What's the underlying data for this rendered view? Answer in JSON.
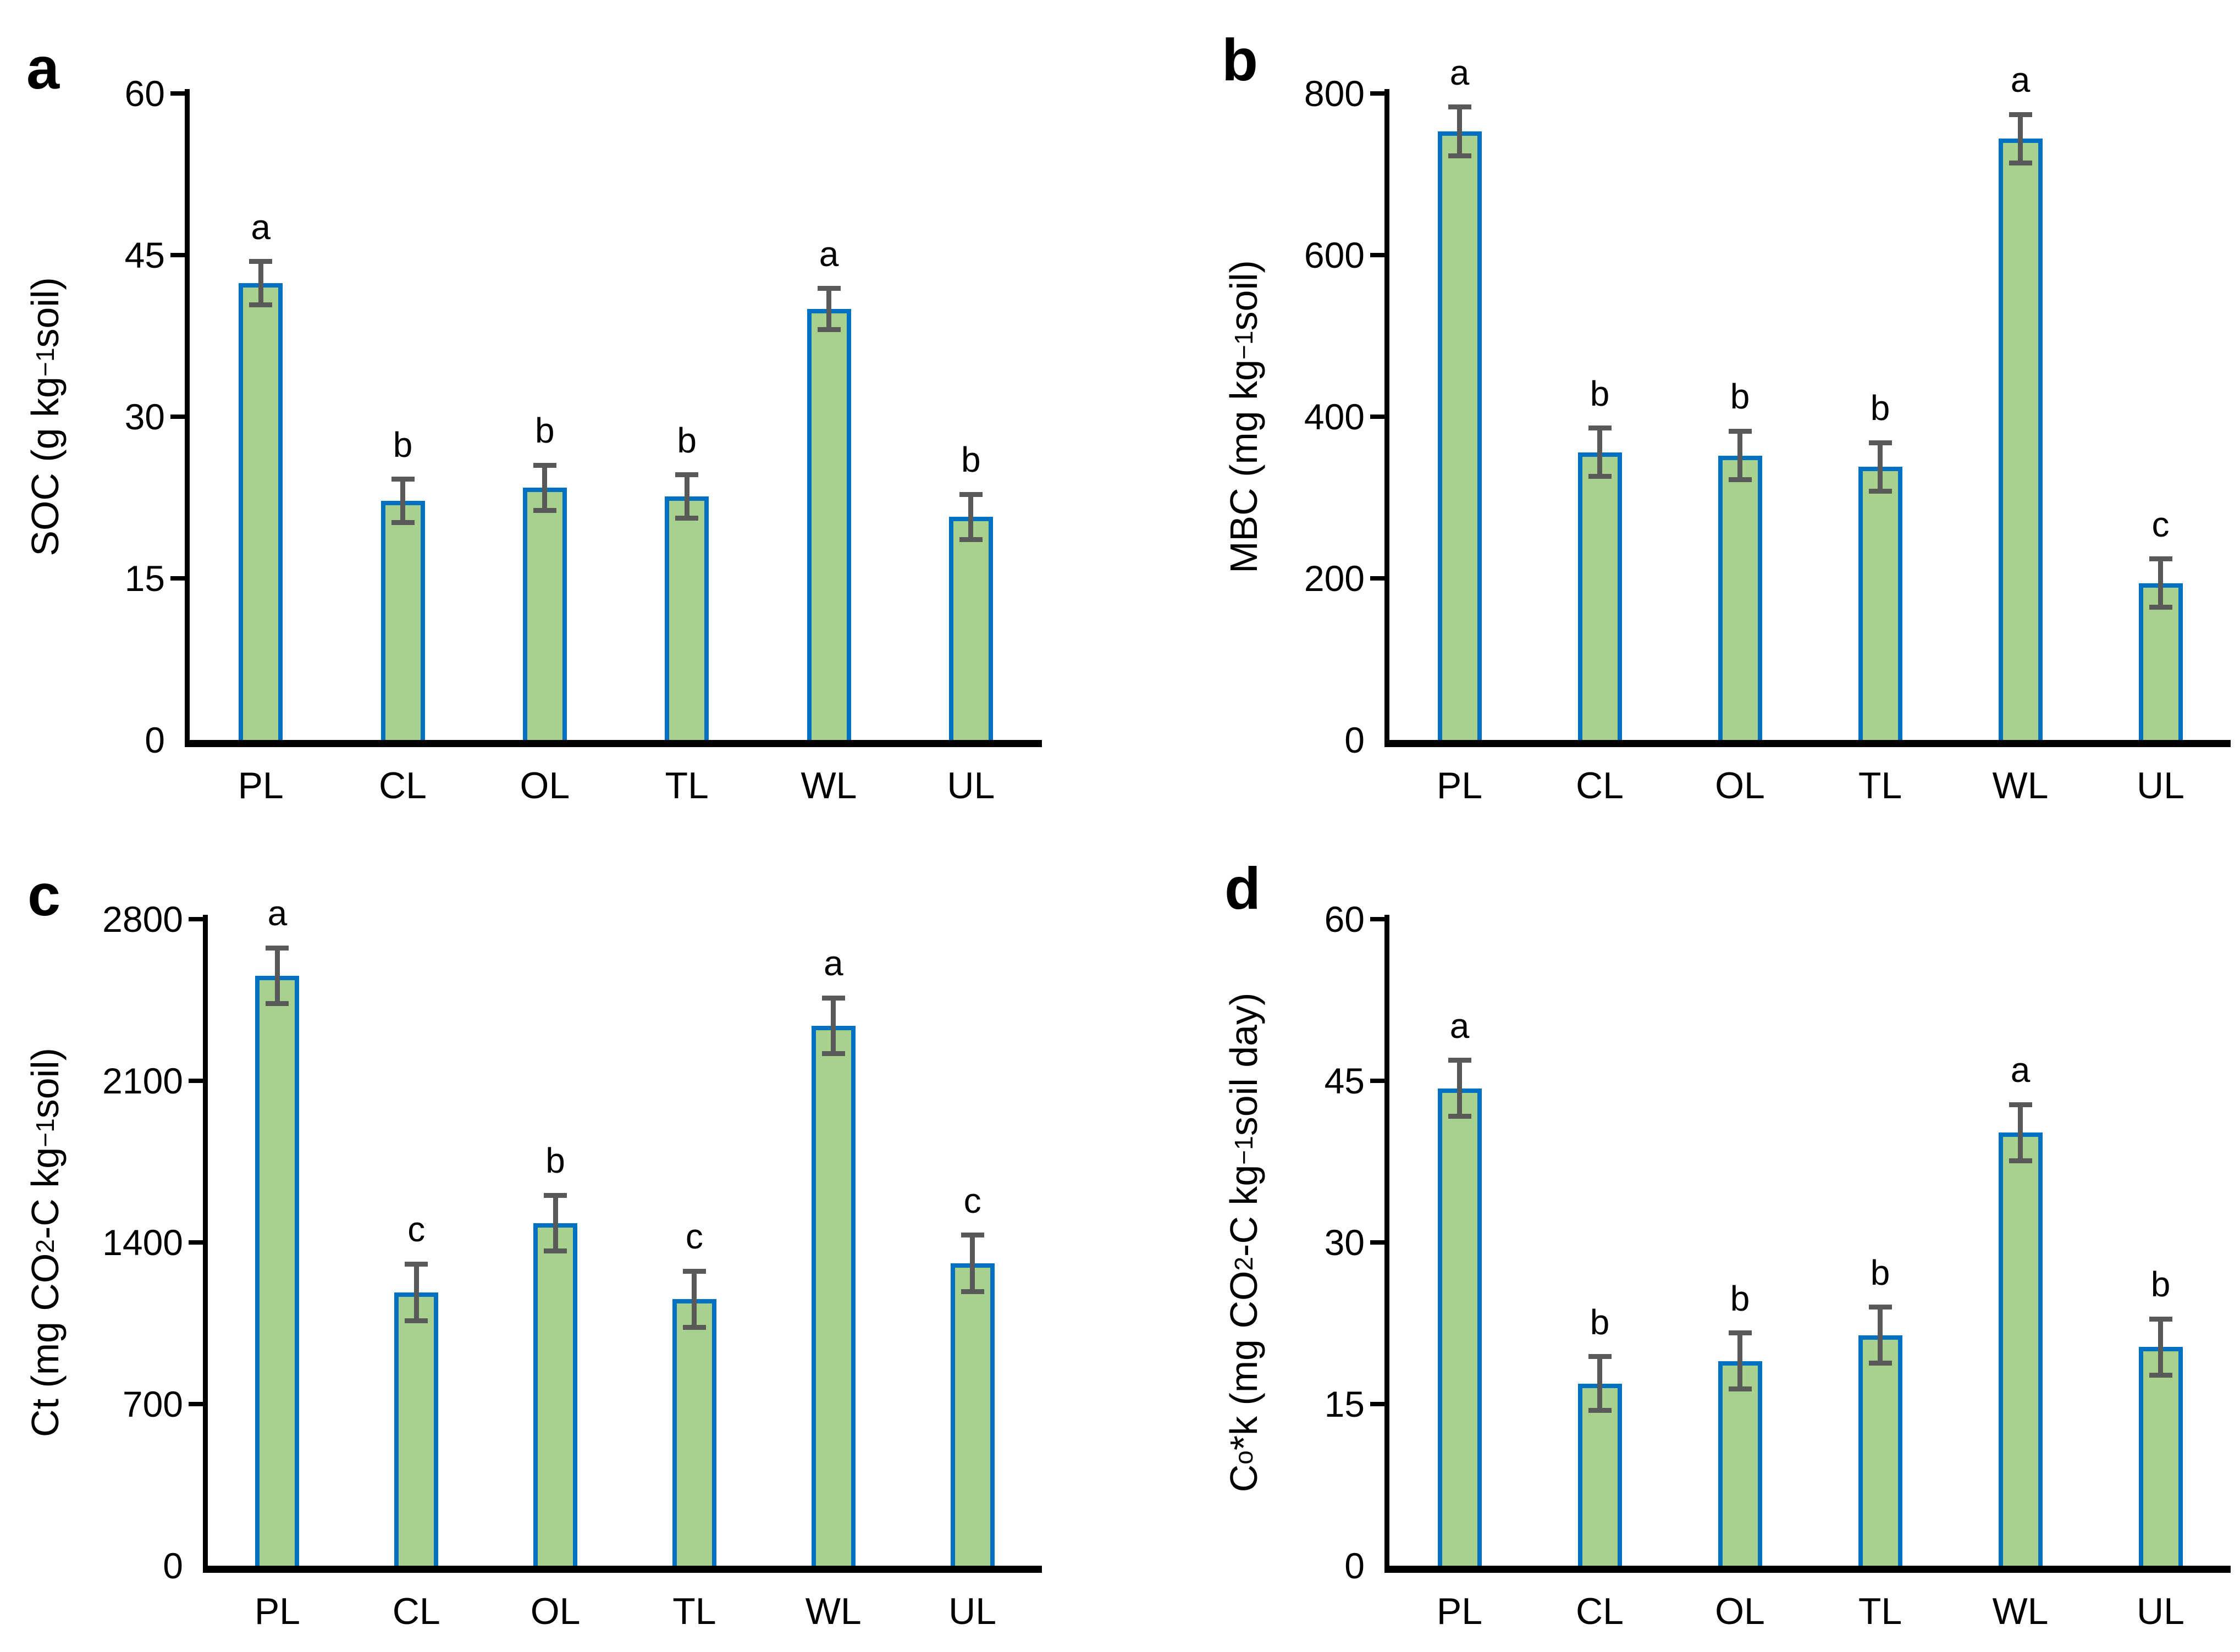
{
  "figure": {
    "background": "#ffffff",
    "bar_fill": "#A9D18E",
    "bar_border": "#0070C0",
    "error_color": "#595959",
    "axis_color": "#000000",
    "text_color": "#000000",
    "categories": [
      "PL",
      "CL",
      "OL",
      "TL",
      "WL",
      "UL"
    ]
  },
  "chart_data": [
    {
      "type": "bar",
      "panel_letter": "a",
      "ylabel": "SOC (g kg−1 soil)",
      "ylabel_segments": [
        {
          "t": "SOC (g kg"
        },
        {
          "t": "−1",
          "sup": true
        },
        {
          "t": " soil)"
        }
      ],
      "xlabel": "",
      "categories": [
        "PL",
        "CL",
        "OL",
        "TL",
        "WL",
        "UL"
      ],
      "values": [
        42.4,
        22.2,
        23.4,
        22.6,
        40.0,
        20.7
      ],
      "errors": [
        2.0,
        2.0,
        2.1,
        2.0,
        1.9,
        2.1
      ],
      "sig_letters": [
        "a",
        "b",
        "b",
        "b",
        "a",
        "b"
      ],
      "ylim": [
        0,
        60
      ],
      "yticks": [
        0,
        15,
        30,
        45,
        60
      ],
      "grid": false,
      "legend_position": "none"
    },
    {
      "type": "bar",
      "panel_letter": "b",
      "ylabel": "MBC (mg kg−1 soil)",
      "ylabel_segments": [
        {
          "t": "MBC (mg kg"
        },
        {
          "t": "−1",
          "sup": true
        },
        {
          "t": " soil)"
        }
      ],
      "xlabel": "",
      "categories": [
        "PL",
        "CL",
        "OL",
        "TL",
        "WL",
        "UL"
      ],
      "values": [
        753,
        356,
        352,
        338,
        744,
        194
      ],
      "errors": [
        30,
        30,
        30,
        30,
        30,
        30
      ],
      "sig_letters": [
        "a",
        "b",
        "b",
        "b",
        "a",
        "c"
      ],
      "ylim": [
        0,
        800
      ],
      "yticks": [
        0,
        200,
        400,
        600,
        800
      ],
      "grid": false,
      "legend_position": "none"
    },
    {
      "type": "bar",
      "panel_letter": "c",
      "ylabel": "Ct (mg CO2-C kg−1 soil)",
      "ylabel_segments": [
        {
          "t": "Ct (mg CO"
        },
        {
          "t": "2",
          "sub": true
        },
        {
          "t": "-C kg"
        },
        {
          "t": "−1",
          "sup": true
        },
        {
          "t": " soil)"
        }
      ],
      "xlabel": "",
      "categories": [
        "PL",
        "CL",
        "OL",
        "TL",
        "WL",
        "UL"
      ],
      "values": [
        2555,
        1183,
        1484,
        1154,
        2339,
        1309
      ],
      "errors": [
        121,
        123,
        120,
        122,
        120,
        122
      ],
      "sig_letters": [
        "a",
        "c",
        "b",
        "c",
        "a",
        "c"
      ],
      "ylim": [
        0,
        2800
      ],
      "yticks": [
        0,
        700,
        1400,
        2100,
        2800
      ],
      "grid": false,
      "legend_position": "none"
    },
    {
      "type": "bar",
      "panel_letter": "d",
      "ylabel": "Co*k (mg CO2-C kg−1 soil day)",
      "ylabel_segments": [
        {
          "t": "C"
        },
        {
          "t": "o",
          "sub": true
        },
        {
          "t": "*k (mg CO"
        },
        {
          "t": "2",
          "sub": true
        },
        {
          "t": "-C kg"
        },
        {
          "t": "−1",
          "sup": true
        },
        {
          "t": " soil day)"
        }
      ],
      "xlabel": "",
      "categories": [
        "PL",
        "CL",
        "OL",
        "TL",
        "WL",
        "UL"
      ],
      "values": [
        44.3,
        16.9,
        19.0,
        21.4,
        40.2,
        20.3
      ],
      "errors": [
        2.6,
        2.5,
        2.6,
        2.6,
        2.6,
        2.6
      ],
      "sig_letters": [
        "a",
        "b",
        "b",
        "b",
        "a",
        "b"
      ],
      "ylim": [
        0,
        60
      ],
      "yticks": [
        0,
        15,
        30,
        45,
        60
      ],
      "grid": false,
      "legend_position": "none"
    }
  ]
}
